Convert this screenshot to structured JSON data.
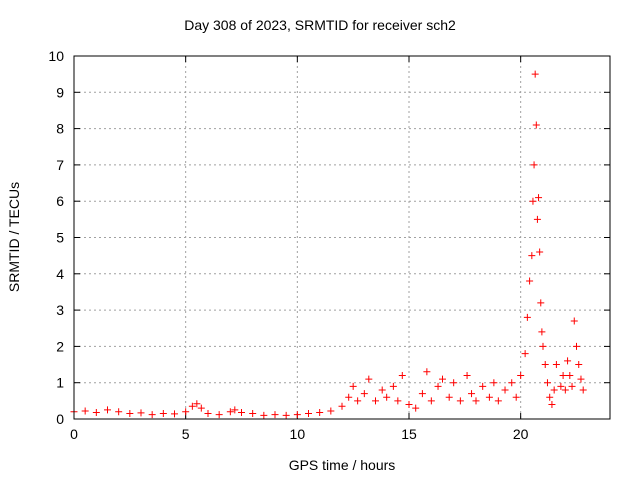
{
  "chart_data": {
    "type": "scatter",
    "title": "Day 308 of 2023, SRMTID for receiver sch2",
    "xlabel": "GPS time / hours",
    "ylabel": "SRMTID / TECUs",
    "xlim": [
      0,
      24
    ],
    "ylim": [
      0,
      10
    ],
    "xticks": [
      0,
      5,
      10,
      15,
      20
    ],
    "yticks": [
      0,
      1,
      2,
      3,
      4,
      5,
      6,
      7,
      8,
      9,
      10
    ],
    "grid": true,
    "marker": "+",
    "color": "#ff0000",
    "series": [
      {
        "name": "sch2",
        "x": [
          0.0,
          0.5,
          1.0,
          1.5,
          2.0,
          2.5,
          3.0,
          3.5,
          4.0,
          4.5,
          5.0,
          5.3,
          5.5,
          5.7,
          6.0,
          6.5,
          7.0,
          7.2,
          7.5,
          8.0,
          8.5,
          9.0,
          9.5,
          10.0,
          10.5,
          11.0,
          11.5,
          12.0,
          12.3,
          12.5,
          12.7,
          13.0,
          13.2,
          13.5,
          13.8,
          14.0,
          14.3,
          14.5,
          14.7,
          15.0,
          15.3,
          15.6,
          15.8,
          16.0,
          16.3,
          16.5,
          16.8,
          17.0,
          17.3,
          17.6,
          17.8,
          18.0,
          18.3,
          18.6,
          18.8,
          19.0,
          19.3,
          19.6,
          19.8,
          20.0,
          20.2,
          20.3,
          20.4,
          20.5,
          20.55,
          20.6,
          20.65,
          20.7,
          20.75,
          20.8,
          20.85,
          20.9,
          20.95,
          21.0,
          21.1,
          21.2,
          21.3,
          21.4,
          21.5,
          21.6,
          21.8,
          21.9,
          22.0,
          22.1,
          22.2,
          22.3,
          22.4,
          22.5,
          22.6,
          22.7,
          22.8
        ],
        "y": [
          0.2,
          0.22,
          0.18,
          0.25,
          0.2,
          0.15,
          0.17,
          0.12,
          0.15,
          0.14,
          0.2,
          0.35,
          0.42,
          0.3,
          0.15,
          0.12,
          0.2,
          0.25,
          0.18,
          0.15,
          0.1,
          0.12,
          0.1,
          0.12,
          0.15,
          0.18,
          0.22,
          0.35,
          0.6,
          0.9,
          0.5,
          0.7,
          1.1,
          0.5,
          0.8,
          0.6,
          0.9,
          0.5,
          1.2,
          0.4,
          0.3,
          0.7,
          1.3,
          0.5,
          0.9,
          1.1,
          0.6,
          1.0,
          0.5,
          1.2,
          0.7,
          0.5,
          0.9,
          0.6,
          1.0,
          0.5,
          0.8,
          1.0,
          0.6,
          1.2,
          1.8,
          2.8,
          3.8,
          4.5,
          6.0,
          7.0,
          9.5,
          8.1,
          5.5,
          6.1,
          4.6,
          3.2,
          2.4,
          2.0,
          1.5,
          1.0,
          0.6,
          0.4,
          0.8,
          1.5,
          0.9,
          1.2,
          0.8,
          1.6,
          1.2,
          0.9,
          2.7,
          2.0,
          1.5,
          1.1,
          0.8
        ]
      }
    ]
  }
}
